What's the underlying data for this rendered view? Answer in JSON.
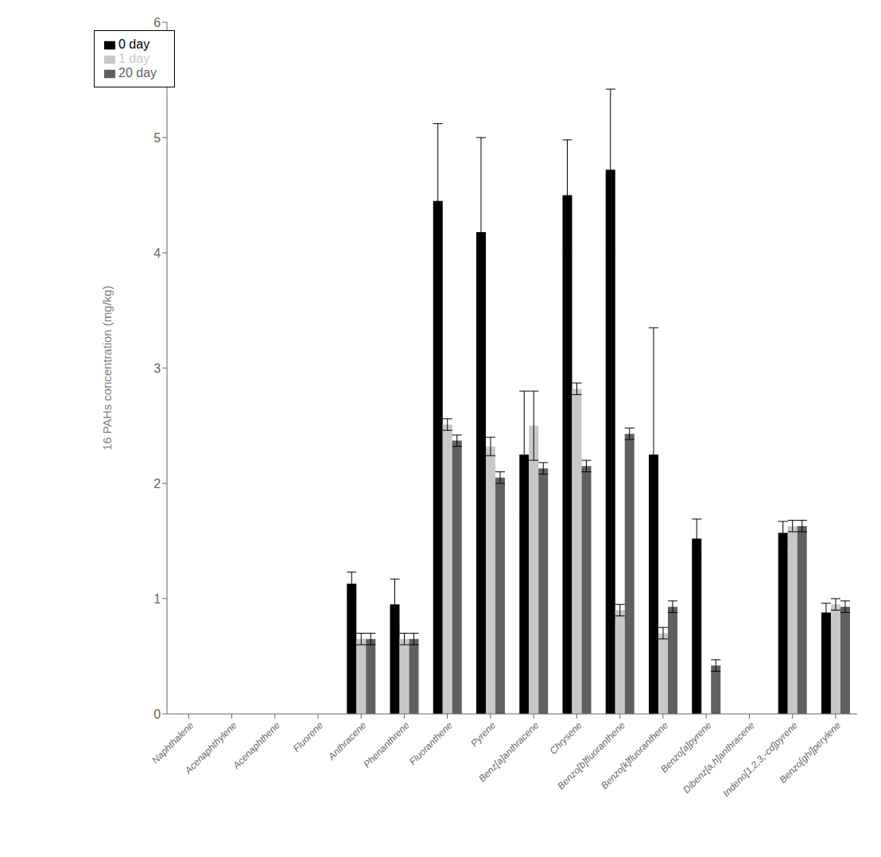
{
  "chart_data": {
    "type": "bar",
    "categories": [
      "Naphthalene",
      "Acenaphthylene",
      "Acenaphthene",
      "Fluorene",
      "Anthracene",
      "Phenanthrene",
      "Fluoranthene",
      "Pyrene",
      "Benz[a]anthracene",
      "Chrysene",
      "Benzo[b]fluoranthene",
      "Benzo[k]fluoranthene",
      "Benzo[a]pyrene",
      "Dibenz[a,h]anthracene",
      "Indeno[1,2,3,-cd]pyrene",
      "Benzo[ghi]perylene"
    ],
    "series": [
      {
        "name": "0 day",
        "color": "#000000",
        "values": [
          0.0,
          0.0,
          0.0,
          0.0,
          1.13,
          0.95,
          4.45,
          4.18,
          2.25,
          4.5,
          4.72,
          2.25,
          1.52,
          0.0,
          1.57,
          0.88
        ],
        "errors": [
          0.0,
          0.0,
          0.0,
          0.0,
          0.1,
          0.22,
          0.67,
          0.82,
          0.55,
          0.48,
          0.7,
          1.1,
          0.17,
          0.0,
          0.1,
          0.08
        ]
      },
      {
        "name": "1 day",
        "color": "#c8c8c8",
        "values": [
          0.0,
          0.0,
          0.0,
          0.0,
          0.65,
          0.65,
          2.51,
          2.32,
          2.5,
          2.82,
          0.9,
          0.7,
          0.0,
          0.0,
          1.63,
          0.95
        ],
        "errors": [
          0.0,
          0.0,
          0.0,
          0.0,
          0.05,
          0.05,
          0.05,
          0.08,
          0.3,
          0.05,
          0.05,
          0.05,
          0.0,
          0.0,
          0.05,
          0.05
        ]
      },
      {
        "name": "20 day",
        "color": "#606060",
        "values": [
          0.0,
          0.0,
          0.0,
          0.0,
          0.65,
          0.65,
          2.37,
          2.05,
          2.13,
          2.15,
          2.43,
          0.93,
          0.42,
          0.0,
          1.63,
          0.93
        ],
        "errors": [
          0.0,
          0.0,
          0.0,
          0.0,
          0.05,
          0.05,
          0.05,
          0.05,
          0.05,
          0.05,
          0.05,
          0.05,
          0.05,
          0.0,
          0.05,
          0.05
        ]
      }
    ],
    "ylabel": "16 PAHs concentration (mg/kg)",
    "ylim": [
      0,
      6
    ],
    "yticks": [
      0,
      1,
      2,
      3,
      4,
      5,
      6
    ],
    "legend": "upper left",
    "grid": false
  }
}
